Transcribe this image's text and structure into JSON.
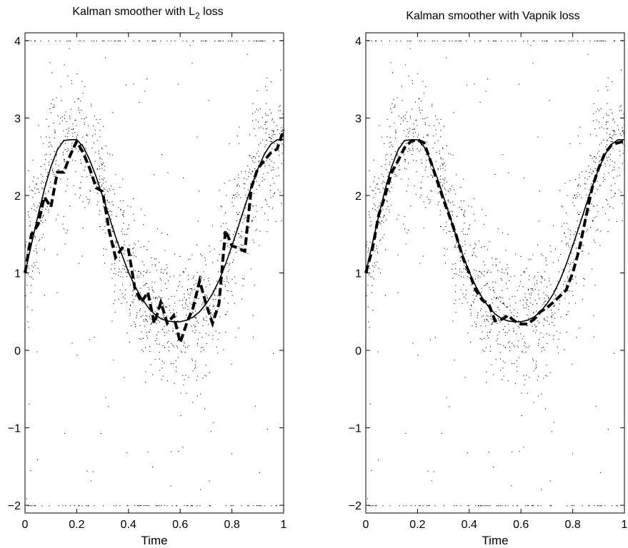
{
  "chart_data": [
    {
      "type": "line",
      "title": "Kalman smoother with L",
      "title_subscript": "2",
      "title_suffix": " loss",
      "xlabel": "Time",
      "ylabel": "",
      "xlim": [
        0,
        1
      ],
      "ylim": [
        -2.1,
        4.1
      ],
      "xticks": [
        0,
        0.2,
        0.4,
        0.6,
        0.8,
        1
      ],
      "xticklabels": [
        "0",
        "0.2",
        "0.4",
        "0.6",
        "0.8",
        "1"
      ],
      "yticks": [
        -2,
        -1,
        0,
        1,
        2,
        3,
        4
      ],
      "yticklabels": [
        "−2",
        "−1",
        "0",
        "1",
        "2",
        "3",
        "4"
      ],
      "grid": false,
      "series": [
        {
          "style": "solid",
          "x": [
            0,
            0.025,
            0.05,
            0.075,
            0.1,
            0.125,
            0.15,
            0.175,
            0.2,
            0.225,
            0.25,
            0.275,
            0.3,
            0.325,
            0.35,
            0.375,
            0.4,
            0.425,
            0.45,
            0.475,
            0.5,
            0.525,
            0.55,
            0.575,
            0.6,
            0.625,
            0.65,
            0.675,
            0.7,
            0.725,
            0.75,
            0.775,
            0.8,
            0.825,
            0.85,
            0.875,
            0.9,
            0.925,
            0.95,
            0.975,
            1
          ],
          "y": [
            1.0,
            1.37,
            1.74,
            2.08,
            2.37,
            2.59,
            2.71,
            2.72,
            2.72,
            2.63,
            2.46,
            2.24,
            1.99,
            1.73,
            1.47,
            1.23,
            1.01,
            0.83,
            0.68,
            0.56,
            0.47,
            0.41,
            0.38,
            0.37,
            0.37,
            0.39,
            0.43,
            0.5,
            0.6,
            0.73,
            0.9,
            1.11,
            1.35,
            1.6,
            1.86,
            2.11,
            2.34,
            2.53,
            2.66,
            2.72,
            2.72
          ]
        },
        {
          "style": "dashed",
          "x": [
            0,
            0.025,
            0.05,
            0.075,
            0.1,
            0.125,
            0.15,
            0.175,
            0.2,
            0.225,
            0.25,
            0.275,
            0.3,
            0.325,
            0.35,
            0.375,
            0.4,
            0.425,
            0.45,
            0.475,
            0.5,
            0.525,
            0.55,
            0.575,
            0.6,
            0.625,
            0.65,
            0.675,
            0.7,
            0.725,
            0.75,
            0.775,
            0.8,
            0.825,
            0.85,
            0.875,
            0.9,
            0.925,
            0.95,
            0.975,
            1
          ],
          "y": [
            1.0,
            1.5,
            1.62,
            1.98,
            1.85,
            2.3,
            2.3,
            2.52,
            2.7,
            2.55,
            2.35,
            2.1,
            2.05,
            1.55,
            1.2,
            1.32,
            1.3,
            0.8,
            0.62,
            0.75,
            0.35,
            0.62,
            0.35,
            0.45,
            0.1,
            0.35,
            0.55,
            0.9,
            0.6,
            0.35,
            0.6,
            1.55,
            1.35,
            1.32,
            1.28,
            2.1,
            2.35,
            2.45,
            2.55,
            2.6,
            2.85
          ]
        }
      ]
    },
    {
      "type": "line",
      "title": "Kalman smoother with Vapnik loss",
      "title_subscript": "",
      "title_suffix": "",
      "xlabel": "Time",
      "ylabel": "",
      "xlim": [
        0,
        1
      ],
      "ylim": [
        -2.1,
        4.1
      ],
      "xticks": [
        0,
        0.2,
        0.4,
        0.6,
        0.8,
        1
      ],
      "xticklabels": [
        "0",
        "0.2",
        "0.4",
        "0.6",
        "0.8",
        "1"
      ],
      "yticks": [
        -2,
        -1,
        0,
        1,
        2,
        3,
        4
      ],
      "yticklabels": [
        "−2",
        "−1",
        "0",
        "1",
        "2",
        "3",
        "4"
      ],
      "grid": false,
      "series": [
        {
          "style": "solid",
          "x": [
            0,
            0.025,
            0.05,
            0.075,
            0.1,
            0.125,
            0.15,
            0.175,
            0.2,
            0.225,
            0.25,
            0.275,
            0.3,
            0.325,
            0.35,
            0.375,
            0.4,
            0.425,
            0.45,
            0.475,
            0.5,
            0.525,
            0.55,
            0.575,
            0.6,
            0.625,
            0.65,
            0.675,
            0.7,
            0.725,
            0.75,
            0.775,
            0.8,
            0.825,
            0.85,
            0.875,
            0.9,
            0.925,
            0.95,
            0.975,
            1
          ],
          "y": [
            1.0,
            1.37,
            1.74,
            2.08,
            2.37,
            2.59,
            2.71,
            2.72,
            2.72,
            2.63,
            2.46,
            2.24,
            1.99,
            1.73,
            1.47,
            1.23,
            1.01,
            0.83,
            0.68,
            0.56,
            0.47,
            0.41,
            0.38,
            0.37,
            0.37,
            0.39,
            0.43,
            0.5,
            0.6,
            0.73,
            0.9,
            1.11,
            1.35,
            1.6,
            1.86,
            2.11,
            2.34,
            2.53,
            2.66,
            2.72,
            2.72
          ]
        },
        {
          "style": "dashed",
          "x": [
            0,
            0.025,
            0.05,
            0.075,
            0.1,
            0.125,
            0.15,
            0.175,
            0.2,
            0.225,
            0.25,
            0.275,
            0.3,
            0.325,
            0.35,
            0.375,
            0.4,
            0.425,
            0.45,
            0.475,
            0.5,
            0.525,
            0.55,
            0.575,
            0.6,
            0.625,
            0.65,
            0.675,
            0.7,
            0.725,
            0.75,
            0.775,
            0.8,
            0.825,
            0.85,
            0.875,
            0.9,
            0.925,
            0.95,
            0.975,
            1
          ],
          "y": [
            1.0,
            1.3,
            1.75,
            2.0,
            2.3,
            2.45,
            2.62,
            2.7,
            2.72,
            2.68,
            2.45,
            2.2,
            1.95,
            1.72,
            1.48,
            1.2,
            1.0,
            0.78,
            0.65,
            0.6,
            0.38,
            0.4,
            0.45,
            0.38,
            0.34,
            0.34,
            0.4,
            0.5,
            0.55,
            0.62,
            0.7,
            0.78,
            1.0,
            1.3,
            1.7,
            2.1,
            2.35,
            2.55,
            2.65,
            2.68,
            2.7
          ]
        }
      ]
    }
  ]
}
